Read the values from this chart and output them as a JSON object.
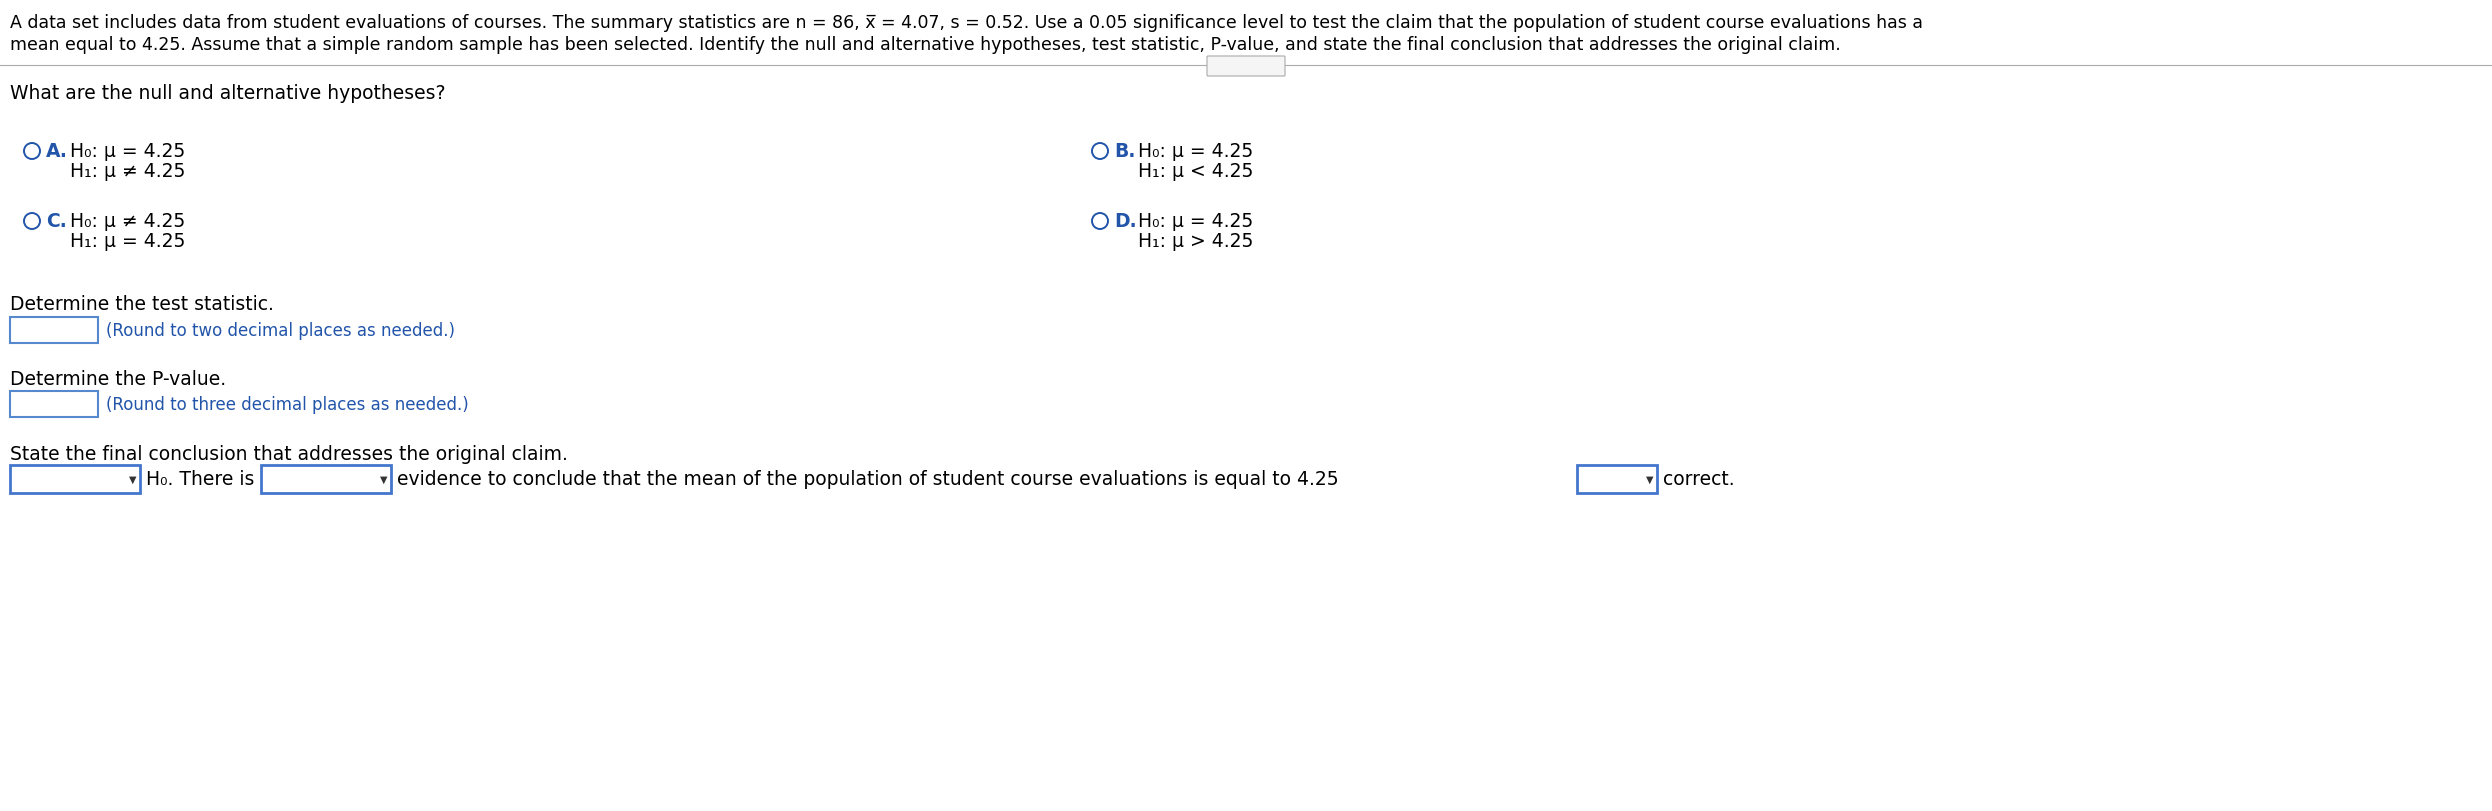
{
  "bg_color": "#ffffff",
  "text_color": "#000000",
  "blue_color": "#2255aa",
  "header_line1": "A data set includes data from student evaluations of courses. The summary statistics are n = 86, x̅ = 4.07, s = 0.52. Use a 0.05 significance level to test the claim that the population of student course evaluations has a",
  "header_line2": "mean equal to 4.25. Assume that a simple random sample has been selected. Identify the null and alternative hypotheses, test statistic, P-value, and state the final conclusion that addresses the original claim.",
  "question1": "What are the null and alternative hypotheses?",
  "opt_A_lbl": "A.",
  "opt_A_l1": "H₀: μ = 4.25",
  "opt_A_l2": "H₁: μ ≠ 4.25",
  "opt_B_lbl": "B.",
  "opt_B_l1": "H₀: μ = 4.25",
  "opt_B_l2": "H₁: μ < 4.25",
  "opt_C_lbl": "C.",
  "opt_C_l1": "H₀: μ ≠ 4.25",
  "opt_C_l2": "H₁: μ = 4.25",
  "opt_D_lbl": "D.",
  "opt_D_l1": "H₀: μ = 4.25",
  "opt_D_l2": "H₁: μ > 4.25",
  "q2_label": "Determine the test statistic.",
  "q2_hint": "(Round to two decimal places as needed.)",
  "q3_label": "Determine the P-value.",
  "q3_hint": "(Round to three decimal places as needed.)",
  "q4_label": "State the final conclusion that addresses the original claim.",
  "q4_drop1_text": "H₀. There is",
  "q4_sentence": "evidence to conclude that the mean of the population of student course evaluations is equal to 4.25",
  "q4_end": "correct.",
  "dots": "• • • • •"
}
